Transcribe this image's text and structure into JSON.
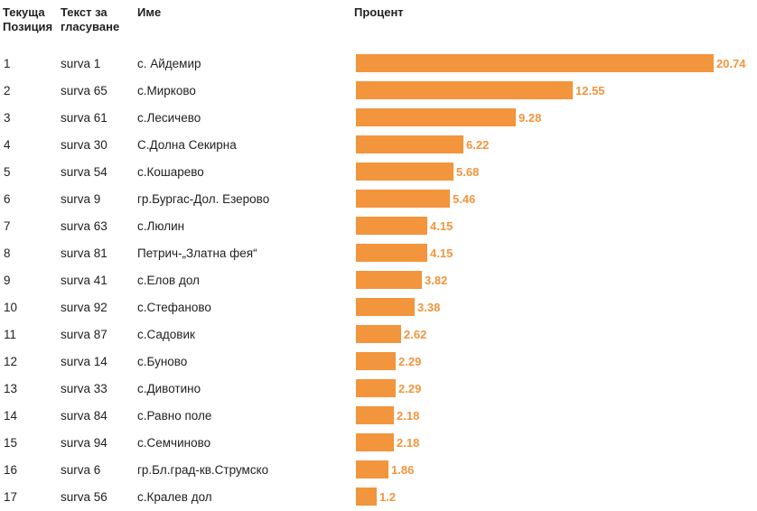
{
  "headers": {
    "position_line1": "Текуща",
    "position_line2": "Позиция",
    "text_line1": "Текст за",
    "text_line2": "гласуване",
    "name": "Име",
    "percent": "Процент"
  },
  "colors": {
    "bar": "#f2953d",
    "value_label": "#f2953d",
    "text": "#222222"
  },
  "chart_data": {
    "type": "bar",
    "orientation": "horizontal",
    "title": "",
    "xlabel": "Процент",
    "ylabel": "",
    "xlim": [
      0,
      20.74
    ],
    "grid": false,
    "rows": [
      {
        "position": "1",
        "code": "surva 1",
        "name": "с. Айдемир",
        "value": 20.74,
        "label": "20.74"
      },
      {
        "position": "2",
        "code": "surva 65",
        "name": "с.Мирково",
        "value": 12.55,
        "label": "12.55"
      },
      {
        "position": "3",
        "code": "surva 61",
        "name": "с.Лесичево",
        "value": 9.28,
        "label": "9.28"
      },
      {
        "position": "4",
        "code": "surva 30",
        "name": "С.Долна Секирна",
        "value": 6.22,
        "label": "6.22"
      },
      {
        "position": "5",
        "code": "surva 54",
        "name": "с.Кошарево",
        "value": 5.68,
        "label": "5.68"
      },
      {
        "position": "6",
        "code": "surva 9",
        "name": "гр.Бургас-Дол. Езерово",
        "value": 5.46,
        "label": "5.46"
      },
      {
        "position": "7",
        "code": "surva 63",
        "name": "с.Люлин",
        "value": 4.15,
        "label": "4.15"
      },
      {
        "position": "8",
        "code": "surva 81",
        "name": "Петрич-„Златна фея“",
        "value": 4.15,
        "label": "4.15"
      },
      {
        "position": "9",
        "code": "surva 41",
        "name": "с.Елов дол",
        "value": 3.82,
        "label": "3.82"
      },
      {
        "position": "10",
        "code": "surva 92",
        "name": "с.Стефаново",
        "value": 3.38,
        "label": "3.38"
      },
      {
        "position": "11",
        "code": "surva 87",
        "name": "с.Садовик",
        "value": 2.62,
        "label": "2.62"
      },
      {
        "position": "12",
        "code": "surva 14",
        "name": "с.Буново",
        "value": 2.29,
        "label": "2.29"
      },
      {
        "position": "13",
        "code": "surva 33",
        "name": "с.Дивотино",
        "value": 2.29,
        "label": "2.29"
      },
      {
        "position": "14",
        "code": "surva 84",
        "name": "с.Равно поле",
        "value": 2.18,
        "label": "2.18"
      },
      {
        "position": "15",
        "code": "surva 94",
        "name": "с.Семчиново",
        "value": 2.18,
        "label": "2.18"
      },
      {
        "position": "16",
        "code": "surva 6",
        "name": "гр.Бл.град-кв.Струмско",
        "value": 1.86,
        "label": "1.86"
      },
      {
        "position": "17",
        "code": "surva 56",
        "name": "с.Кралев дол",
        "value": 1.2,
        "label": "1.2"
      }
    ]
  }
}
